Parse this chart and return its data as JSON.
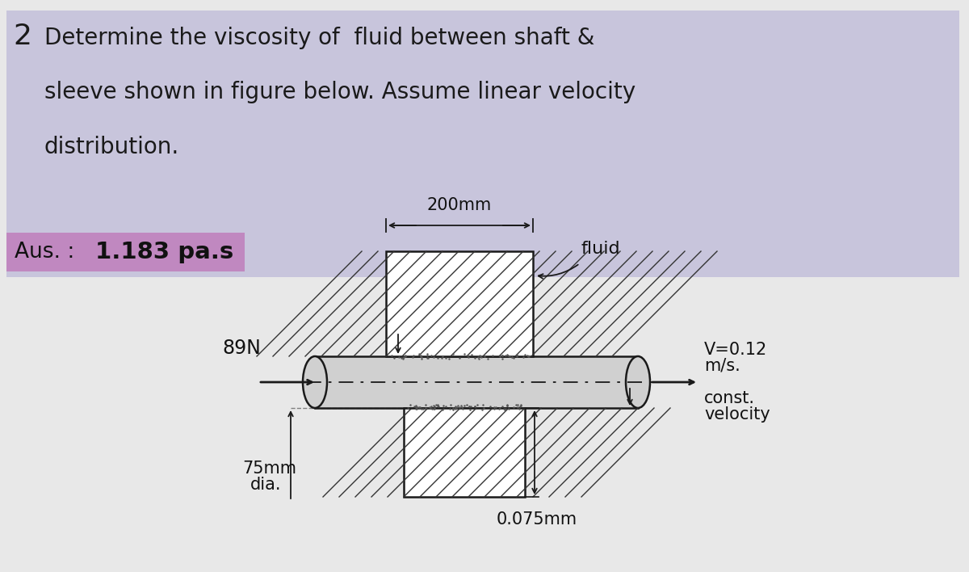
{
  "bg_color": "#e8e8f0",
  "text_bg_color": "#c8c5dc",
  "ans_bg_color": "#c088c0",
  "page_bg": "#e8e8e8",
  "main_text_lines": [
    "Determine the viscosity of  fluid between shaft &",
    "sleeve shown in figure below. Assume linear velocity",
    "distribution."
  ],
  "ans_label": "Aus. :",
  "ans_value": "1.183 pa.s",
  "dim_200mm": "200mm",
  "label_fluid": "fluid",
  "label_force": "89N",
  "label_75mm_1": "75mm",
  "label_75mm_2": "dia.",
  "label_0075mm": "0.075mm",
  "figure_number": "2",
  "shaft_color": "#d0d0d0",
  "sleeve_color": "#e0e0e0",
  "line_color": "#1a1a1a",
  "hatch_color": "#333333"
}
